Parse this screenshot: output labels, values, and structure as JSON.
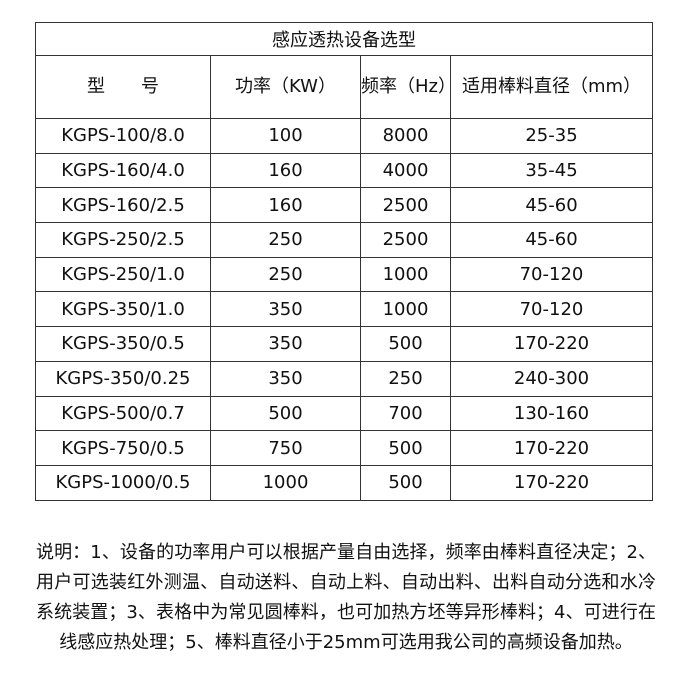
{
  "table": {
    "title": "感应透热设备选型",
    "headers": [
      "型　　号",
      "功率（KW）",
      "频率（Hz）",
      "适用棒料直径（mm）"
    ],
    "rows": [
      [
        "KGPS-100/8.0",
        "100",
        "8000",
        "25-35"
      ],
      [
        "KGPS-160/4.0",
        "160",
        "4000",
        "35-45"
      ],
      [
        "KGPS-160/2.5",
        "160",
        "2500",
        "45-60"
      ],
      [
        "KGPS-250/2.5",
        "250",
        "2500",
        "45-60"
      ],
      [
        "KGPS-250/1.0",
        "250",
        "1000",
        "70-120"
      ],
      [
        "KGPS-350/1.0",
        "350",
        "1000",
        "70-120"
      ],
      [
        "KGPS-350/0.5",
        "350",
        "500",
        "170-220"
      ],
      [
        "KGPS-350/0.25",
        "350",
        "250",
        "240-300"
      ],
      [
        "KGPS-500/0.7",
        "500",
        "700",
        "130-160"
      ],
      [
        "KGPS-750/0.5",
        "750",
        "500",
        "170-220"
      ],
      [
        "KGPS-1000/0.5",
        "1000",
        "500",
        "170-220"
      ]
    ]
  },
  "note": "说明：1、设备的功率用户可以根据产量自由选择，频率由棒料直径决定；2、用户可选装红外测温、自动送料、自动上料、自动出料、出料自动分选和水冷系统装置；3、表格中为常见圆棒料，也可加热方坯等异形棒料；4、可进行在线感应热处理；5、棒料直径小于25mm可选用我公司的高频设备加热。"
}
